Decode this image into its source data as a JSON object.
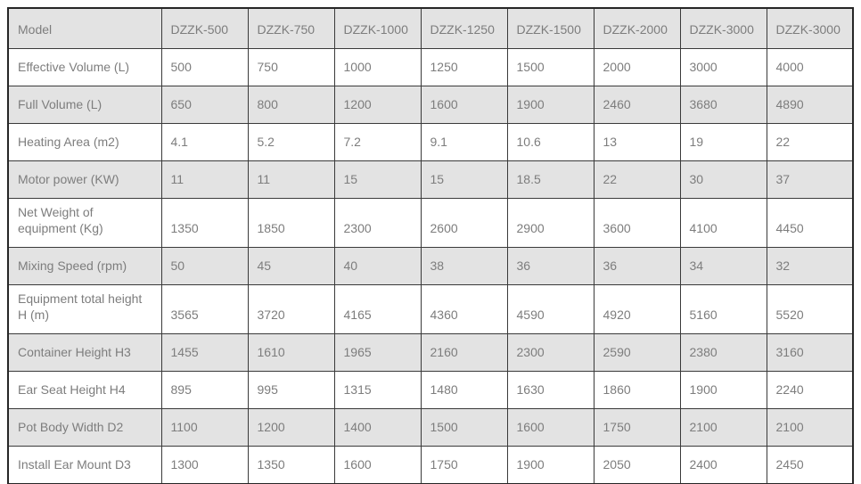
{
  "colors": {
    "page_background": "#ffffff",
    "header_row_bg": "#e3e3e3",
    "alt_row_bg": "#e3e3e3",
    "plain_row_bg": "#ffffff",
    "cell_border": "#3a3a3a",
    "outer_border": "#262626",
    "text": "#7d7d7d"
  },
  "chart_data": {
    "type": "table",
    "columns": [
      "Model",
      "DZZK-500",
      "DZZK-750",
      "DZZK-1000",
      "DZZK-1250",
      "DZZK-1500",
      "DZZK-2000",
      "DZZK-3000",
      "DZZK-3000"
    ],
    "rows": [
      {
        "label": "Effective Volume (L)",
        "values": [
          "500",
          "750",
          "1000",
          "1250",
          "1500",
          "2000",
          "3000",
          "4000"
        ]
      },
      {
        "label": "Full Volume (L)",
        "values": [
          "650",
          "800",
          "1200",
          "1600",
          "1900",
          "2460",
          "3680",
          "4890"
        ]
      },
      {
        "label": "Heating Area (m2)",
        "values": [
          "4.1",
          "5.2",
          "7.2",
          "9.1",
          "10.6",
          "13",
          "19",
          "22"
        ]
      },
      {
        "label": "Motor power (KW)",
        "values": [
          "11",
          "11",
          "15",
          "15",
          "18.5",
          "22",
          "30",
          "37"
        ]
      },
      {
        "label": "Net Weight of equipment (Kg)",
        "values": [
          "1350",
          "1850",
          "2300",
          "2600",
          "2900",
          "3600",
          "4100",
          "4450"
        ]
      },
      {
        "label": "Mixing Speed (rpm)",
        "values": [
          "50",
          "45",
          "40",
          "38",
          "36",
          "36",
          "34",
          "32"
        ]
      },
      {
        "label": "Equipment total height H (m)",
        "values": [
          "3565",
          "3720",
          "4165",
          "4360",
          "4590",
          "4920",
          "5160",
          "5520"
        ]
      },
      {
        "label": "Container Height H3",
        "values": [
          "1455",
          "1610",
          "1965",
          "2160",
          "2300",
          "2590",
          "2380",
          "3160"
        ]
      },
      {
        "label": "Ear Seat Height H4",
        "values": [
          "895",
          "995",
          "1315",
          "1480",
          "1630",
          "1860",
          "1900",
          "2240"
        ]
      },
      {
        "label": "Pot Body Width D2",
        "values": [
          "1100",
          "1200",
          "1400",
          "1500",
          "1600",
          "1750",
          "2100",
          "2100"
        ]
      },
      {
        "label": "Install Ear Mount D3",
        "values": [
          "1300",
          "1350",
          "1600",
          "1750",
          "1900",
          "2050",
          "2400",
          "2450"
        ]
      }
    ]
  }
}
